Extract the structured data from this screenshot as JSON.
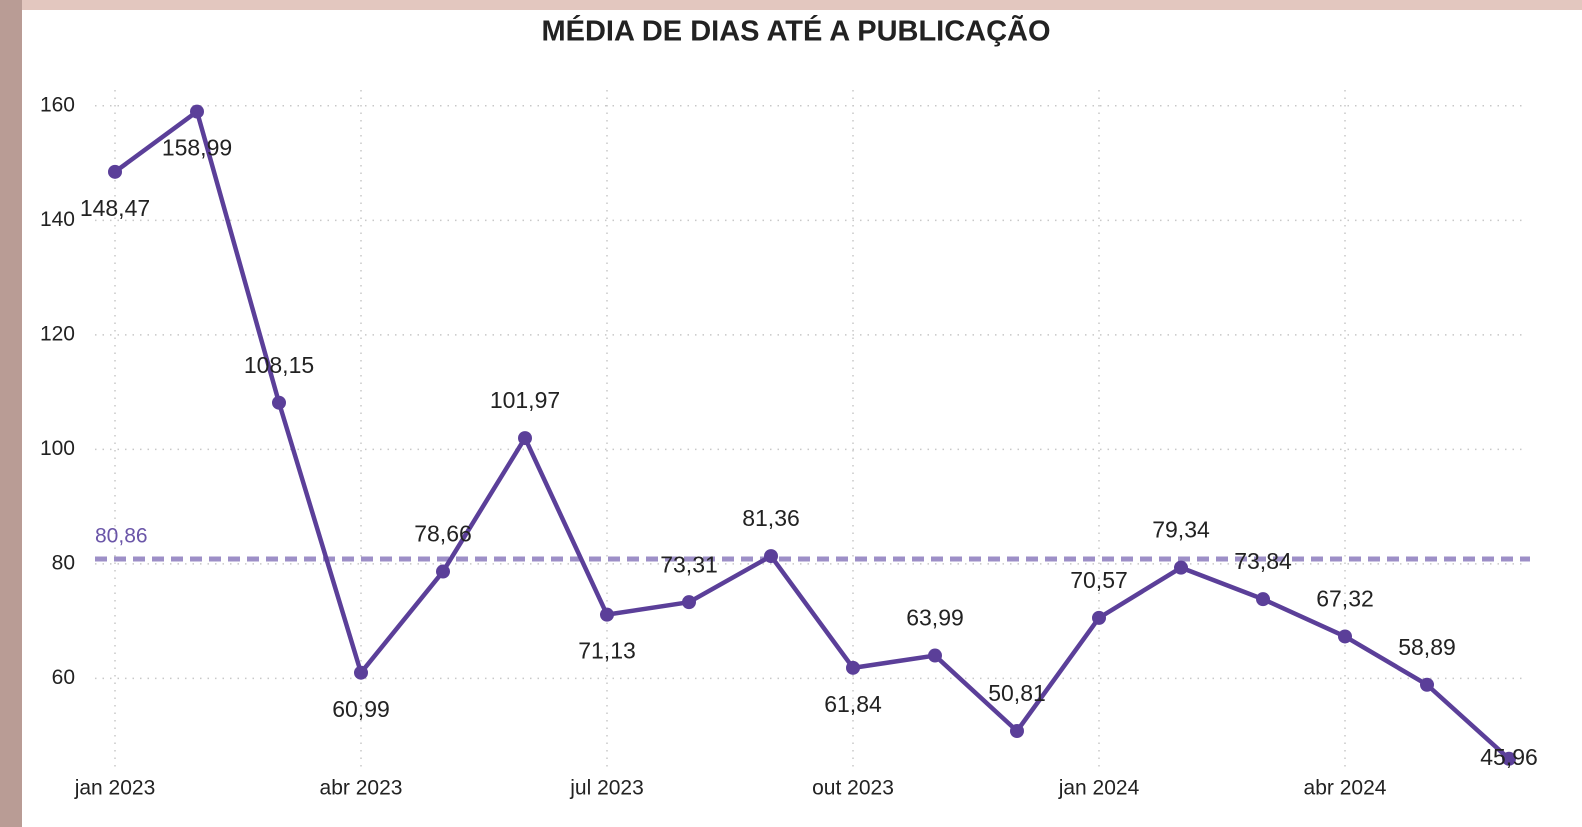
{
  "chart_data": {
    "type": "line",
    "title": "MÉDIA DE DIAS ATÉ A PUBLICAÇÃO",
    "categories": [
      "jan 2023",
      null,
      null,
      "abr 2023",
      null,
      null,
      "jul 2023",
      null,
      null,
      "out 2023",
      null,
      null,
      "jan 2024",
      null,
      null,
      "abr 2024",
      null,
      null
    ],
    "series": [
      {
        "color": "#5b3f99",
        "values": [
          148.47,
          158.99,
          108.15,
          60.99,
          78.66,
          101.97,
          71.13,
          73.31,
          81.36,
          61.84,
          63.99,
          50.81,
          70.57,
          79.34,
          73.84,
          67.32,
          58.89,
          45.96
        ],
        "value_labels": [
          "148,47",
          "158,99",
          "108,15",
          "60,99",
          "78,66",
          "101,97",
          "71,13",
          "73,31",
          "81,36",
          "61,84",
          "63,99",
          "50,81",
          "70,57",
          "79,34",
          "73,84",
          "67,32",
          "58,89",
          "45,96"
        ]
      }
    ],
    "reference_line": {
      "value": 80.86,
      "label": "80,86",
      "color": "#9d8fc7"
    },
    "ylim": [
      44,
      168
    ],
    "yticks": [
      60,
      80,
      100,
      120,
      140,
      160
    ],
    "grid": true
  }
}
